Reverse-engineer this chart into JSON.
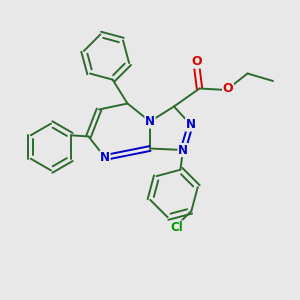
{
  "background_color": "#e8e8e8",
  "bond_color": "#2d6b2d",
  "nitrogen_color": "#0000cc",
  "oxygen_color": "#dd0000",
  "chlorine_color": "#009900",
  "bond_lw": 1.4,
  "figsize": [
    3.0,
    3.0
  ],
  "dpi": 100,
  "xlim": [
    0,
    10
  ],
  "ylim": [
    0,
    10
  ]
}
